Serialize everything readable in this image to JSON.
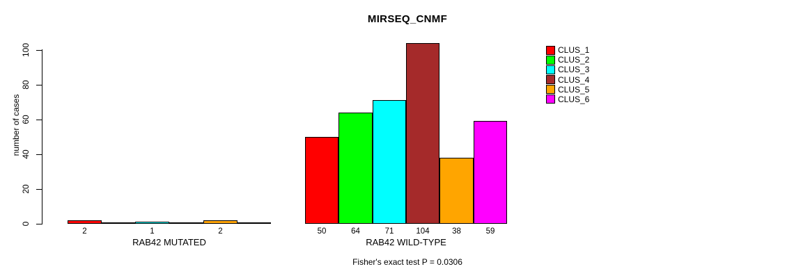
{
  "title": "MIRSEQ_CNMF",
  "y_axis": {
    "label": "number of cases"
  },
  "footer": "Fisher's exact test P = 0.0306",
  "legend": {
    "items": [
      {
        "label": "CLUS_1",
        "color": "#ff0000"
      },
      {
        "label": "CLUS_2",
        "color": "#00ff00"
      },
      {
        "label": "CLUS_3",
        "color": "#00ffff"
      },
      {
        "label": "CLUS_4",
        "color": "#a52a2a"
      },
      {
        "label": "CLUS_5",
        "color": "#ffa500"
      },
      {
        "label": "CLUS_6",
        "color": "#ff00ff"
      }
    ]
  },
  "chart_data": {
    "type": "bar",
    "title": "MIRSEQ_CNMF",
    "ylabel": "number of cases",
    "xlabel": "",
    "ylim": [
      0,
      110
    ],
    "yticks": [
      0,
      20,
      40,
      60,
      80,
      100
    ],
    "grid": false,
    "legend_position": "right",
    "annotation": "Fisher's exact test P = 0.0306",
    "series_names": [
      "CLUS_1",
      "CLUS_2",
      "CLUS_3",
      "CLUS_4",
      "CLUS_5",
      "CLUS_6"
    ],
    "series_colors": [
      "#ff0000",
      "#00ff00",
      "#00ffff",
      "#a52a2a",
      "#ffa500",
      "#ff00ff"
    ],
    "groups": [
      {
        "category": "RAB42 MUTATED",
        "values": [
          2,
          0,
          1,
          0,
          2,
          0
        ],
        "bar_labels": [
          "2",
          "",
          "1",
          "",
          "2",
          ""
        ]
      },
      {
        "category": "RAB42 WILD-TYPE",
        "values": [
          50,
          64,
          71,
          104,
          38,
          59
        ],
        "bar_labels": [
          "50",
          "64",
          "71",
          "104",
          "38",
          "59"
        ]
      }
    ]
  }
}
